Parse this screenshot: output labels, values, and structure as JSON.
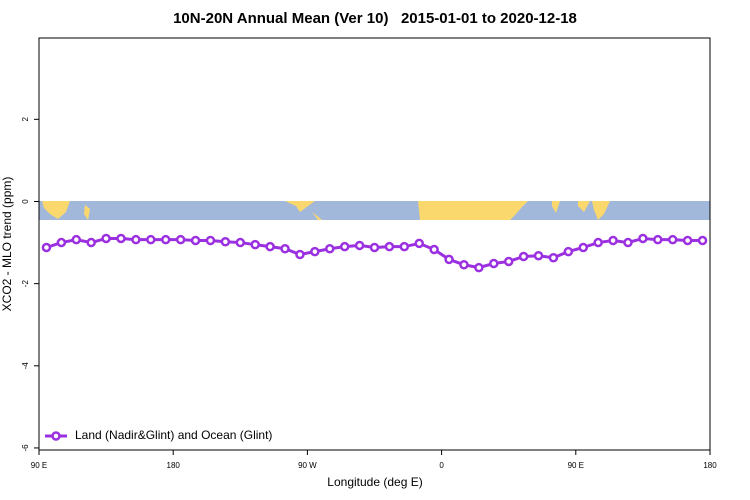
{
  "chart_data": {
    "type": "line",
    "title": "10N-20N Annual Mean (Ver 10)   2015-01-01 to 2020-12-18",
    "x_label": "Longitude (deg E)",
    "y_label": "XCO2 - MLO trend (ppm)",
    "x": [
      95,
      105,
      115,
      125,
      135,
      145,
      155,
      165,
      175,
      185,
      195,
      205,
      215,
      225,
      235,
      245,
      255,
      265,
      275,
      285,
      295,
      305,
      315,
      325,
      335,
      345,
      355,
      365,
      375,
      385,
      395,
      405,
      415,
      425,
      435,
      445,
      455,
      465,
      475,
      485,
      495,
      505,
      515,
      525,
      535
    ],
    "series": [
      {
        "name": "Land (Nadir&Glint) and Ocean (Glint)",
        "color": "#9b30e0",
        "values": [
          -1.12,
          -1.0,
          -0.93,
          -1.0,
          -0.9,
          -0.9,
          -0.93,
          -0.93,
          -0.93,
          -0.93,
          -0.95,
          -0.95,
          -0.98,
          -1.0,
          -1.05,
          -1.1,
          -1.15,
          -1.29,
          -1.22,
          -1.15,
          -1.1,
          -1.07,
          -1.12,
          -1.1,
          -1.1,
          -1.02,
          -1.17,
          -1.41,
          -1.54,
          -1.61,
          -1.51,
          -1.46,
          -1.34,
          -1.32,
          -1.37,
          -1.22,
          -1.12,
          -1.0,
          -0.95,
          -1.0,
          -0.9,
          -0.93,
          -0.93,
          -0.95,
          -0.95
        ]
      }
    ],
    "xlim": [
      90,
      540
    ],
    "xticks": [
      {
        "value": 90,
        "label": "90 E"
      },
      180,
      {
        "value": 270,
        "label": "90 W"
      },
      {
        "value": 360,
        "label": "0"
      },
      {
        "value": 450,
        "label": "90 E"
      },
      {
        "value": 540,
        "label": "180"
      }
    ],
    "ylim": [
      -6.05,
      3.98
    ],
    "yticks": [
      -6,
      -4,
      -2,
      0,
      2
    ],
    "legend": "bottom-left"
  }
}
